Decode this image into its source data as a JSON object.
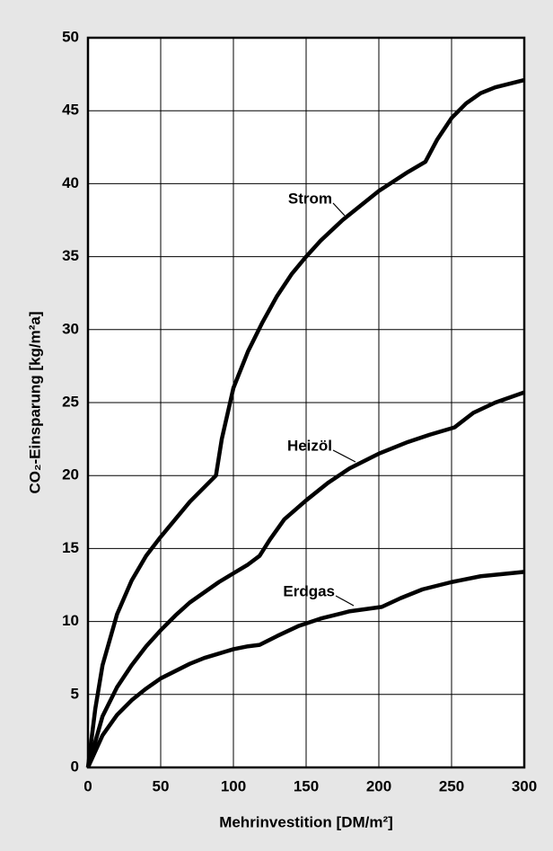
{
  "chart_data": {
    "type": "line",
    "xlabel": "Mehrinvestition [DM/m²]",
    "ylabel": "CO₂-Einsparung [kg/m²a]",
    "xlim": [
      0,
      300
    ],
    "ylim": [
      0,
      50
    ],
    "xticks": [
      0,
      50,
      100,
      150,
      200,
      250,
      300
    ],
    "yticks": [
      0,
      5,
      10,
      15,
      20,
      25,
      30,
      35,
      40,
      45,
      50
    ],
    "grid": true,
    "series": [
      {
        "name": "Strom",
        "color": "#000000",
        "x": [
          0,
          5,
          10,
          20,
          30,
          40,
          50,
          60,
          70,
          80,
          88,
          92,
          100,
          110,
          120,
          130,
          140,
          150,
          160,
          175,
          200,
          220,
          232,
          240,
          250,
          260,
          270,
          280,
          300
        ],
        "values": [
          0,
          4,
          7,
          10.5,
          12.8,
          14.5,
          15.8,
          17,
          18.2,
          19.2,
          20,
          22.5,
          26,
          28.5,
          30.5,
          32.3,
          33.8,
          35,
          36.1,
          37.5,
          39.5,
          40.8,
          41.5,
          43,
          44.5,
          45.5,
          46.2,
          46.6,
          47.1
        ]
      },
      {
        "name": "Heizöl",
        "color": "#000000",
        "x": [
          0,
          10,
          20,
          30,
          40,
          50,
          60,
          70,
          80,
          90,
          100,
          110,
          118,
          125,
          135,
          150,
          165,
          180,
          200,
          220,
          235,
          252,
          265,
          280,
          300
        ],
        "values": [
          0,
          3.5,
          5.5,
          7,
          8.3,
          9.4,
          10.4,
          11.3,
          12,
          12.7,
          13.3,
          13.9,
          14.5,
          15.6,
          17,
          18.3,
          19.5,
          20.5,
          21.5,
          22.3,
          22.8,
          23.3,
          24.3,
          25,
          25.7
        ]
      },
      {
        "name": "Erdgas",
        "color": "#000000",
        "x": [
          0,
          10,
          20,
          30,
          40,
          50,
          60,
          70,
          80,
          90,
          100,
          110,
          118,
          130,
          145,
          160,
          180,
          202,
          215,
          230,
          250,
          270,
          300
        ],
        "values": [
          0,
          2.2,
          3.6,
          4.6,
          5.4,
          6.1,
          6.6,
          7.1,
          7.5,
          7.8,
          8.1,
          8.3,
          8.4,
          9,
          9.7,
          10.2,
          10.7,
          11,
          11.6,
          12.2,
          12.7,
          13.1,
          13.4
        ]
      }
    ]
  }
}
